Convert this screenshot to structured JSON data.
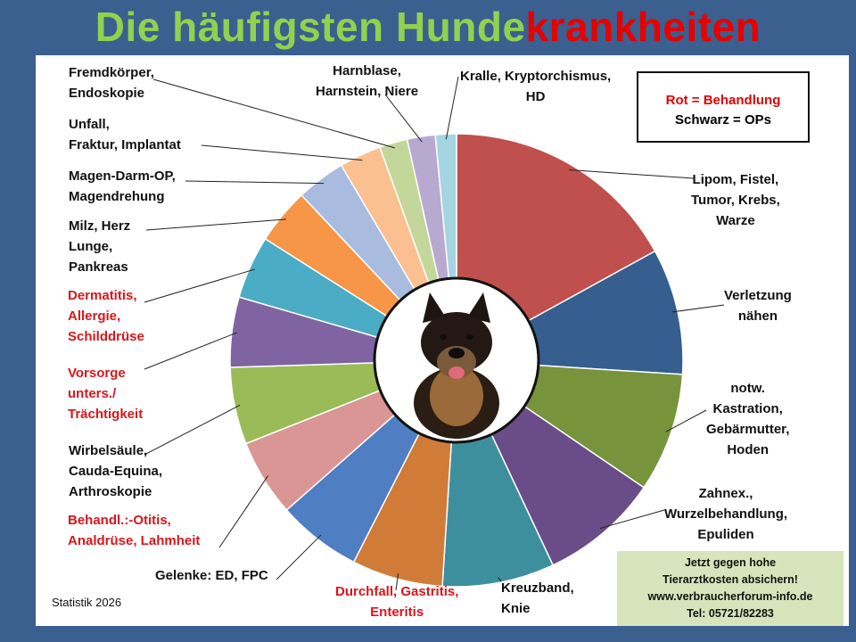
{
  "title": {
    "part1": "Die häufigsten Hunde",
    "part2": "krankheiten"
  },
  "legend": {
    "red_text": "Rot = Behandlung",
    "black_text": "Schwarz = OPs"
  },
  "promo": {
    "line1": "Jetzt gegen  hohe",
    "line2": "Tierarztkosten absichern!",
    "line3": "www.verbraucherforum-info.de",
    "line4": "Tel: 05721/82283"
  },
  "footnote": "Statistik 2026",
  "colors": {
    "red_label": "#d9161c",
    "title_green": "#92d050",
    "title_red": "#e60000",
    "background": "#3b5f8e"
  },
  "center_image": "dog-photo",
  "chart_data": {
    "type": "pie",
    "title": "",
    "start": "12 o'clock, clockwise",
    "slices": [
      {
        "lines": [
          "Lipom, Fistel,",
          "Tumor, Krebs,",
          "Warze"
        ],
        "category": "OP",
        "value": 17,
        "color": "#c0504d"
      },
      {
        "lines": [
          "Verletzung",
          "nähen"
        ],
        "category": "OP",
        "value": 9,
        "color": "#365e8f"
      },
      {
        "lines": [
          "notw.",
          "Kastration,",
          "Gebärmutter,",
          "Hoden"
        ],
        "category": "OP",
        "value": 8.5,
        "color": "#77933c"
      },
      {
        "lines": [
          "Zahnex.,",
          "Wurzelbehandlung,",
          "Epuliden"
        ],
        "category": "OP",
        "value": 8.5,
        "color": "#6a4c89"
      },
      {
        "lines": [
          "Kreuzband,",
          "Knie"
        ],
        "category": "OP",
        "value": 8,
        "color": "#3e8f9e"
      },
      {
        "lines": [
          "Durchfall, Gastritis,",
          "Enteritis"
        ],
        "category": "Behandlung",
        "value": 6.5,
        "color": "#d17b38"
      },
      {
        "lines": [
          "Gelenke:  ED, FPC"
        ],
        "category": "OP",
        "value": 6,
        "color": "#4f7ec2"
      },
      {
        "lines": [
          "Behandl.:-Otitis,",
          "Analdrüse, Lahmheit"
        ],
        "category": "Behandlung",
        "value": 5.5,
        "color": "#d99694"
      },
      {
        "lines": [
          "Wirbelsäule,",
          "Cauda-Equina,",
          "Arthroskopie"
        ],
        "category": "OP",
        "value": 5.5,
        "color": "#9bbb59"
      },
      {
        "lines": [
          "Vorsorge",
          "unters./",
          "Trächtigkeit"
        ],
        "category": "Behandlung",
        "value": 5,
        "color": "#8064a2"
      },
      {
        "lines": [
          "Dermatitis,",
          "Allergie,",
          "Schilddrüse"
        ],
        "category": "Behandlung",
        "value": 4.5,
        "color": "#4bacc6"
      },
      {
        "lines": [
          "Milz, Herz",
          "Lunge,",
          "Pankreas"
        ],
        "category": "OP",
        "value": 4,
        "color": "#f79646"
      },
      {
        "lines": [
          "Magen-Darm-OP,",
          "Magendrehung"
        ],
        "category": "OP",
        "value": 3.5,
        "color": "#a9bcdf"
      },
      {
        "lines": [
          "Unfall,",
          "Fraktur, Implantat"
        ],
        "category": "OP",
        "value": 3,
        "color": "#fac090"
      },
      {
        "lines": [
          "Fremdkörper,",
          "Endoskopie"
        ],
        "category": "OP",
        "value": 2,
        "color": "#c4d79b"
      },
      {
        "lines": [
          "Harnblase,",
          "Harnstein, Niere"
        ],
        "category": "OP",
        "value": 2,
        "color": "#b7a9cf"
      },
      {
        "lines": [
          "Kralle, Kryptorchismus,",
          "HD"
        ],
        "category": "OP",
        "value": 1.5,
        "color": "#a5d5e2"
      }
    ]
  }
}
